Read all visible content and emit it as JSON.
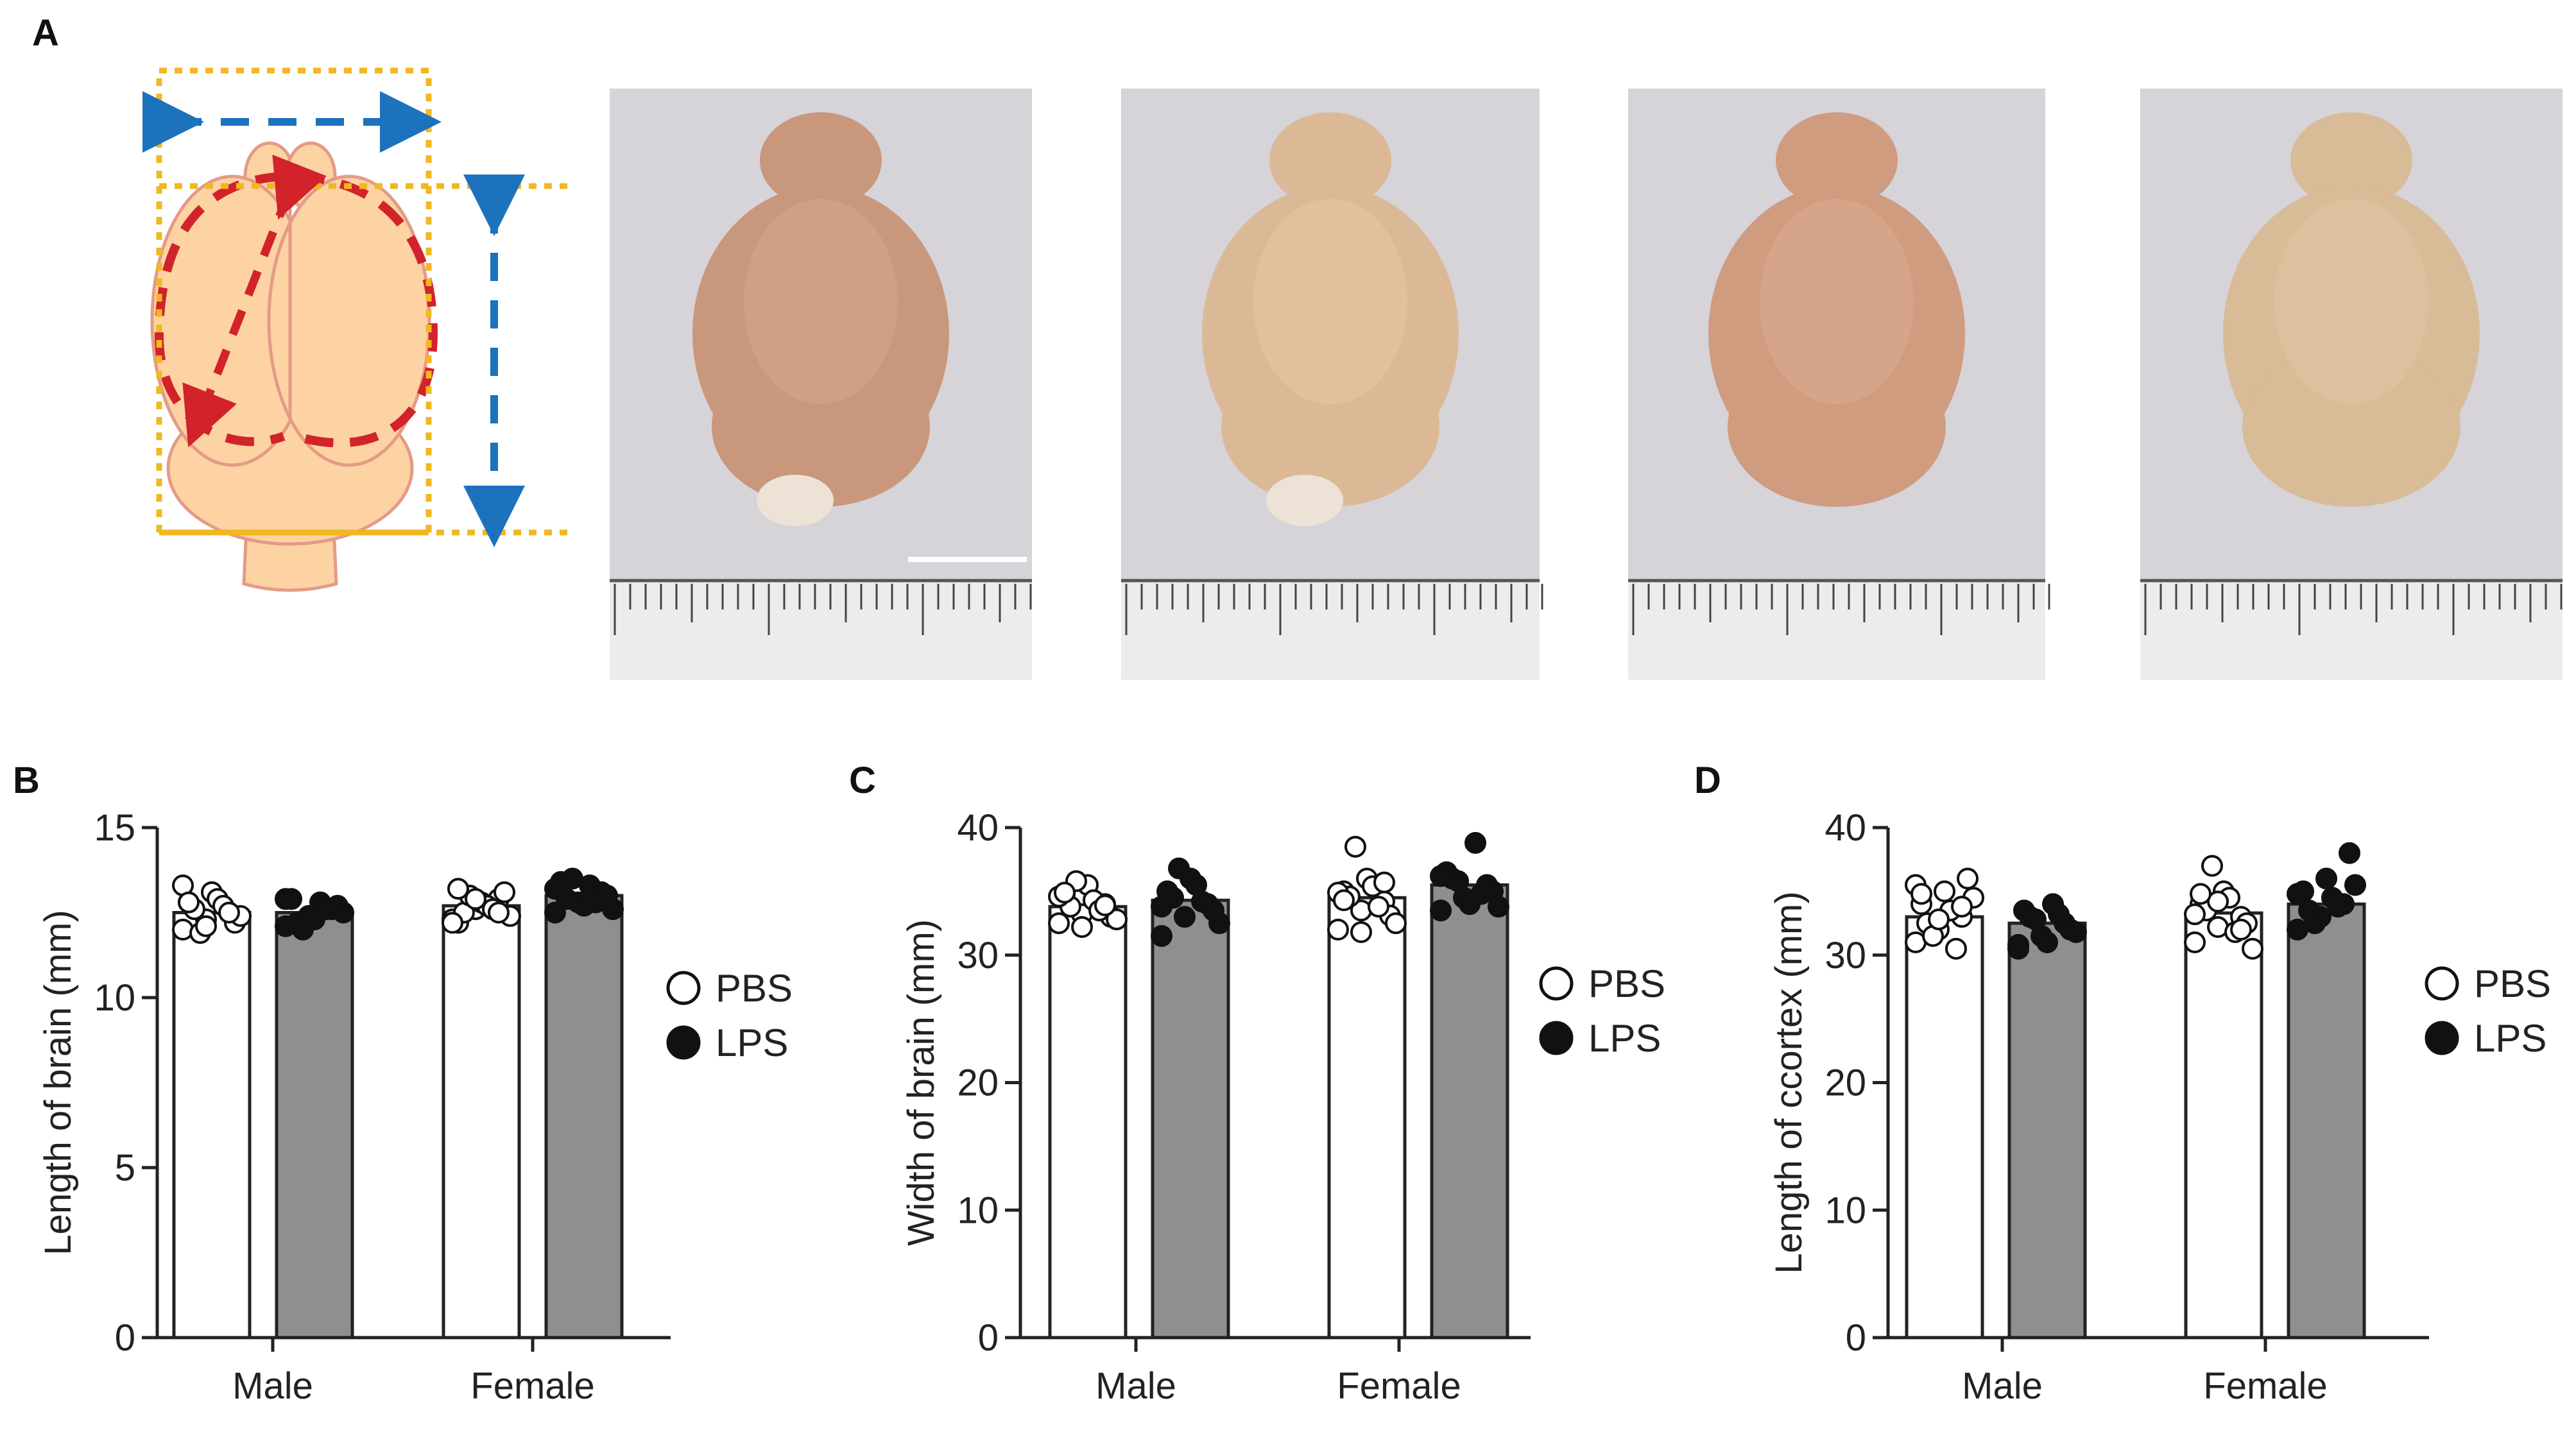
{
  "panels": {
    "a": "A",
    "b": "B",
    "c": "C",
    "d": "D"
  },
  "colors": {
    "pbs_bar": "#ffffff",
    "lps_bar": "#8f8f92",
    "box_outline": "#f2b722",
    "arrow_blue": "#1d72bd",
    "arrow_red": "#d2232a",
    "brain_fill": "#fdd3a3",
    "brain_outline": "#e49b86"
  },
  "legend": {
    "pbs": "PBS",
    "lps": "LPS"
  },
  "chart_data": [
    {
      "type": "bar",
      "panel": "B",
      "ylabel": "Length of brain (mm)",
      "ylim": [
        0,
        15
      ],
      "yticks": [
        0,
        5,
        10,
        15
      ],
      "categories": [
        "Male",
        "Female"
      ],
      "series": [
        {
          "name": "PBS",
          "values": [
            12.5,
            12.7
          ],
          "points": [
            [
              12.0,
              12.3,
              12.5,
              12.8,
              13.1,
              12.2,
              12.6,
              12.9,
              12.4,
              11.9,
              12.7,
              13.3,
              12.1,
              12.5,
              12.8
            ],
            [
              12.3,
              12.6,
              12.9,
              12.2,
              12.8,
              13.1,
              12.5,
              12.7,
              12.4,
              13.0,
              12.6,
              12.2,
              12.9,
              12.5,
              13.2
            ]
          ]
        },
        {
          "name": "LPS",
          "values": [
            12.5,
            13.0
          ],
          "points": [
            [
              12.1,
              12.4,
              12.6,
              12.9,
              12.3,
              12.7,
              12.2,
              12.8,
              12.5,
              12.0,
              12.6,
              12.9
            ],
            [
              12.5,
              12.8,
              13.1,
              13.4,
              12.7,
              13.0,
              12.9,
              13.3,
              12.6,
              13.5,
              12.8,
              13.2
            ]
          ]
        }
      ],
      "legend": "right"
    },
    {
      "type": "bar",
      "panel": "C",
      "ylabel": "Width of brain (mm)",
      "ylim": [
        0,
        40
      ],
      "yticks": [
        0,
        10,
        20,
        30,
        40
      ],
      "categories": [
        "Male",
        "Female"
      ],
      "series": [
        {
          "name": "PBS",
          "values": [
            33.8,
            34.5
          ],
          "points": [
            [
              32.5,
              33.2,
              34.0,
              34.8,
              35.5,
              33.0,
              33.8,
              34.3,
              32.8,
              35.8,
              33.5,
              34.6,
              32.2,
              33.9,
              34.9
            ],
            [
              32.0,
              33.5,
              34.2,
              35.0,
              36.0,
              33.1,
              34.6,
              35.4,
              32.5,
              38.5,
              33.8,
              34.9,
              31.8,
              35.7,
              34.3
            ]
          ]
        },
        {
          "name": "LPS",
          "values": [
            34.3,
            35.5
          ],
          "points": [
            [
              31.5,
              33.0,
              34.0,
              35.0,
              36.0,
              33.5,
              34.5,
              35.5,
              32.5,
              36.8,
              34.2,
              33.8
            ],
            [
              33.5,
              34.5,
              35.5,
              36.5,
              34.0,
              35.0,
              36.0,
              38.8,
              33.8,
              35.8,
              34.8,
              36.2
            ]
          ]
        }
      ],
      "legend": "right"
    },
    {
      "type": "bar",
      "panel": "D",
      "ylabel": "Length of ccortex (mm)",
      "ylim": [
        0,
        40
      ],
      "yticks": [
        0,
        10,
        20,
        30,
        40
      ],
      "categories": [
        "Male",
        "Female"
      ],
      "series": [
        {
          "name": "PBS",
          "values": [
            33.0,
            33.3
          ],
          "points": [
            [
              31.0,
              32.0,
              33.0,
              34.0,
              35.0,
              36.0,
              32.5,
              33.5,
              34.5,
              31.5,
              30.5,
              35.5,
              32.8,
              33.8,
              34.8
            ],
            [
              31.0,
              32.2,
              33.0,
              34.0,
              35.0,
              32.5,
              33.5,
              34.5,
              30.5,
              37.0,
              31.8,
              33.2,
              34.2,
              32.0,
              34.8
            ]
          ]
        },
        {
          "name": "LPS",
          "values": [
            32.5,
            34.0
          ],
          "points": [
            [
              30.5,
              31.5,
              32.5,
              33.5,
              31.0,
              32.0,
              33.0,
              34.0,
              31.8,
              32.8,
              33.2,
              30.8
            ],
            [
              32.0,
              33.0,
              34.0,
              35.0,
              36.0,
              38.0,
              33.5,
              34.5,
              35.5,
              32.5,
              33.8,
              34.8
            ]
          ]
        }
      ],
      "legend": "right"
    }
  ]
}
